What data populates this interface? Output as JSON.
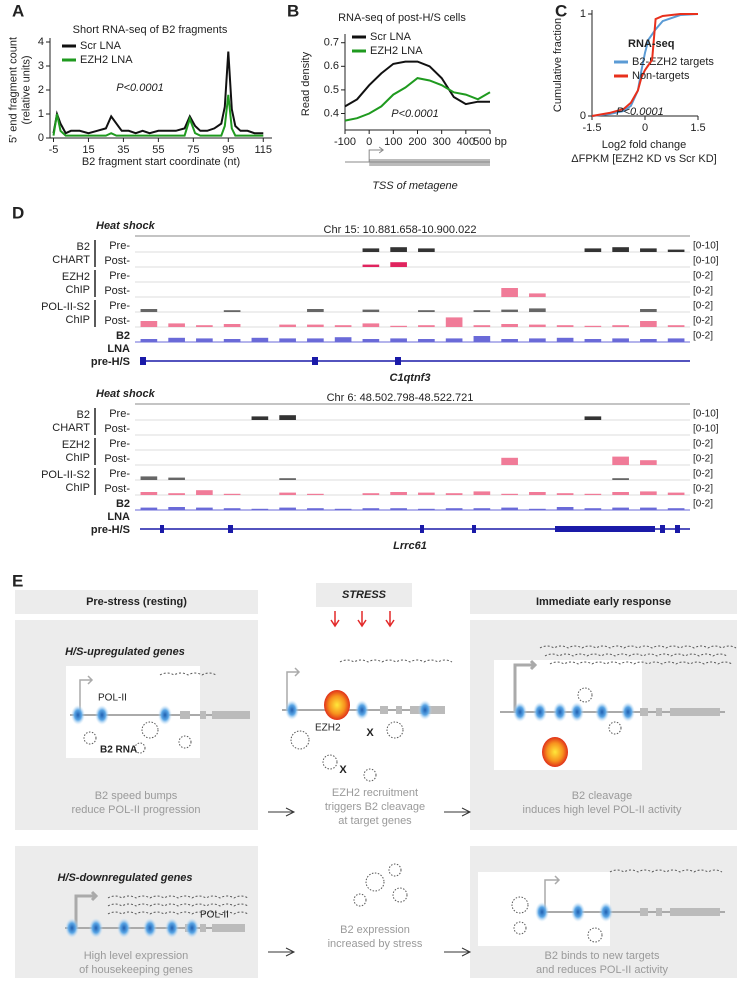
{
  "chart_data": [
    {
      "type": "line",
      "letter": "A",
      "title": "Short RNA-seq of B2 fragments",
      "xlabel": [
        "B2 fragment start coordinate (nt)"
      ],
      "ylabel": [
        "5' end fragment count",
        "(relative units)"
      ],
      "annotation": "P<0.0001",
      "x": [
        -5,
        -3,
        -1,
        2,
        5,
        10,
        15,
        20,
        25,
        28,
        31,
        34,
        38,
        42,
        46,
        50,
        55,
        60,
        65,
        70,
        73,
        76,
        79,
        83,
        87,
        91,
        93,
        95,
        97,
        99,
        102,
        106,
        110,
        115
      ],
      "series": [
        {
          "name": "Scr LNA",
          "color": "#111111",
          "values": [
            0.2,
            1.0,
            0.6,
            0.2,
            0.3,
            0.3,
            0.2,
            0.3,
            0.4,
            0.9,
            0.6,
            0.3,
            0.3,
            0.2,
            0.3,
            0.2,
            0.3,
            0.3,
            0.3,
            0.4,
            0.9,
            0.5,
            0.3,
            0.3,
            0.4,
            0.6,
            1.3,
            3.6,
            1.2,
            0.5,
            0.3,
            0.3,
            0.2,
            0.2
          ]
        },
        {
          "name": "EZH2 LNA",
          "color": "#1f9a1f",
          "values": [
            0.1,
            1.0,
            0.3,
            0.1,
            0.1,
            0.1,
            0.1,
            0.1,
            0.1,
            0.2,
            0.1,
            0.1,
            0.1,
            0.1,
            0.1,
            0.1,
            0.1,
            0.1,
            0.1,
            0.1,
            0.8,
            0.2,
            0.1,
            0.1,
            0.1,
            0.1,
            0.5,
            1.8,
            0.4,
            0.1,
            0.1,
            0.1,
            0.1,
            0.1
          ]
        }
      ],
      "xlim": [
        -7,
        120
      ],
      "xticks": [
        -5,
        15,
        35,
        55,
        75,
        95,
        115
      ],
      "ylim": [
        0,
        4
      ],
      "yticks": [
        0,
        1,
        2,
        3,
        4
      ]
    },
    {
      "type": "line",
      "letter": "B",
      "title": "RNA-seq of post-H/S cells",
      "xlabel": [
        "TSS of metagene"
      ],
      "ylabel": [
        "Read density"
      ],
      "annotation": "P<0.0001",
      "x": [
        -100,
        -50,
        0,
        50,
        100,
        150,
        200,
        250,
        300,
        350,
        400,
        450,
        500
      ],
      "series": [
        {
          "name": "Scr LNA",
          "color": "#111111",
          "values": [
            0.43,
            0.46,
            0.52,
            0.57,
            0.61,
            0.62,
            0.62,
            0.6,
            0.55,
            0.47,
            0.44,
            0.45,
            0.45
          ]
        },
        {
          "name": "EZH2 LNA",
          "color": "#1f9a1f",
          "values": [
            0.37,
            0.38,
            0.4,
            0.43,
            0.48,
            0.51,
            0.55,
            0.54,
            0.52,
            0.49,
            0.48,
            0.46,
            0.49
          ]
        }
      ],
      "xlim": [
        -100,
        500
      ],
      "xticks": [
        -100,
        0,
        100,
        200,
        300,
        400,
        {
          "value": 500,
          "label": "500 bp"
        }
      ],
      "ylim": [
        0.33,
        0.72
      ],
      "yticks": [
        0.4,
        0.5,
        0.6,
        0.7
      ]
    },
    {
      "type": "line",
      "letter": "C",
      "legend_title": "RNA-seq",
      "annotation": "P<0.0001",
      "xlabel": [
        "Log2 fold change",
        "ΔFPKM [EZH2 KD vs Scr KD]"
      ],
      "ylabel": [
        "Cumulative fraction"
      ],
      "x": [
        -1.5,
        -1,
        -0.6,
        -0.4,
        -0.2,
        -0.1,
        0,
        0.1,
        0.2,
        0.3,
        0.5,
        1,
        1.5
      ],
      "series": [
        {
          "name": "B2-EZH2 targets",
          "color": "#5b9bd5",
          "values": [
            0,
            0.02,
            0.05,
            0.1,
            0.25,
            0.45,
            0.62,
            0.75,
            0.8,
            0.85,
            0.93,
            0.99,
            1
          ]
        },
        {
          "name": "Non-targets",
          "color": "#e8301c",
          "values": [
            0,
            0.03,
            0.07,
            0.13,
            0.25,
            0.38,
            0.45,
            0.5,
            0.55,
            0.95,
            0.98,
            1,
            1
          ]
        }
      ],
      "xlim": [
        -1.5,
        1.5
      ],
      "xticks": [
        -1.5,
        0,
        1.5
      ],
      "ylim": [
        0,
        1
      ],
      "yticks": [
        0,
        1
      ]
    }
  ],
  "panel_d": {
    "letter": "D",
    "groups": [
      [
        "B2",
        "CHART"
      ],
      [
        "EZH2",
        "ChIP"
      ],
      [
        "POL-II-S2",
        "ChIP"
      ]
    ],
    "blue_label": [
      "B2",
      "LNA",
      "pre-H/S"
    ],
    "loci": [
      {
        "condition": "Heat shock",
        "coordinates": "Chr 15: 10.881.658-10.900.022",
        "gene": "C1qtnf3",
        "tracks": [
          {
            "label": "Pre-",
            "label_color": "#222222",
            "color": "#333333",
            "ylim": [
              0,
              10
            ],
            "range_label": "[0-10]",
            "values": [
              0,
              0,
              0,
              0,
              0,
              0,
              0,
              0,
              3,
              4,
              3,
              0,
              0,
              0,
              0,
              0,
              3,
              4,
              3,
              2
            ]
          },
          {
            "label": "Post-",
            "label_color": "#e0245e",
            "color": "#e0245e",
            "ylim": [
              0,
              10
            ],
            "range_label": "[0-10]",
            "values": [
              0,
              0,
              0,
              0,
              0,
              0,
              0,
              0,
              2,
              4,
              0,
              0,
              0,
              0,
              0,
              0,
              0,
              0,
              0,
              0
            ]
          },
          {
            "label": "Pre-",
            "label_color": "#222222",
            "color": "#555555",
            "ylim": [
              0,
              2
            ],
            "range_label": "[0-2]",
            "values": [
              0,
              0,
              0,
              0,
              0,
              0,
              0,
              0,
              0,
              0,
              0,
              0,
              0,
              0,
              0,
              0,
              0,
              0,
              0,
              0
            ]
          },
          {
            "label": "Post-",
            "label_color": "#e0245e",
            "color": "#f07b98",
            "ylim": [
              0,
              2
            ],
            "range_label": "[0-2]",
            "values": [
              0,
              0,
              0,
              0,
              0,
              0,
              0,
              0,
              0,
              0,
              0,
              0,
              0,
              1.5,
              0.6,
              0,
              0,
              0,
              0,
              0
            ]
          },
          {
            "label": "Pre-",
            "label_color": "#222222",
            "color": "#666666",
            "ylim": [
              0,
              2
            ],
            "range_label": "[0-2]",
            "values": [
              0.5,
              0,
              0,
              0.3,
              0,
              0,
              0.5,
              0,
              0.4,
              0,
              0.3,
              0,
              0.3,
              0.4,
              0.6,
              0,
              0,
              0,
              0.5,
              0
            ]
          },
          {
            "label": "Post-",
            "label_color": "#e0245e",
            "color": "#f07b98",
            "ylim": [
              0,
              2
            ],
            "range_label": "[0-2]",
            "values": [
              1,
              0.6,
              0.3,
              0.5,
              0,
              0.4,
              0.4,
              0.3,
              0.6,
              0.2,
              0.3,
              1.6,
              0.3,
              0.5,
              0.4,
              0.3,
              0.2,
              0.3,
              1,
              0.3
            ]
          },
          {
            "color": "#6a6ad8",
            "ylim": [
              0,
              2
            ],
            "range_label": "[0-2]",
            "values": [
              0.5,
              0.7,
              0.6,
              0.5,
              0.7,
              0.6,
              0.6,
              0.8,
              0.5,
              0.6,
              0.5,
              0.6,
              1,
              0.5,
              0.6,
              0.7,
              0.5,
              0.6,
              0.5,
              0.6
            ]
          }
        ]
      },
      {
        "condition": "Heat shock",
        "coordinates": "Chr 6: 48.502.798-48.522.721",
        "gene": "Lrrc61",
        "tracks": [
          {
            "label": "Pre-",
            "label_color": "#222222",
            "color": "#333333",
            "ylim": [
              0,
              10
            ],
            "range_label": "[0-10]",
            "values": [
              0,
              0,
              0,
              0,
              3,
              4,
              0,
              0,
              0,
              0,
              0,
              0,
              0,
              0,
              0,
              0,
              3,
              0,
              0,
              0
            ]
          },
          {
            "label": "Post-",
            "label_color": "#e0245e",
            "color": "#e0245e",
            "ylim": [
              0,
              10
            ],
            "range_label": "[0-10]",
            "values": [
              0,
              0,
              0,
              0,
              0,
              0,
              0,
              0,
              0,
              0,
              0,
              0,
              0,
              0,
              0,
              0,
              0,
              0,
              0,
              0
            ]
          },
          {
            "label": "Pre-",
            "label_color": "#222222",
            "color": "#555555",
            "ylim": [
              0,
              2
            ],
            "range_label": "[0-2]",
            "values": [
              0,
              0,
              0,
              0,
              0,
              0,
              0,
              0,
              0,
              0,
              0,
              0,
              0,
              0,
              0,
              0,
              0,
              0,
              0,
              0
            ]
          },
          {
            "label": "Post-",
            "label_color": "#e0245e",
            "color": "#f07b98",
            "ylim": [
              0,
              2
            ],
            "range_label": "[0-2]",
            "values": [
              0,
              0,
              0,
              0,
              0,
              0,
              0,
              0,
              0,
              0,
              0,
              0,
              0,
              1.2,
              0,
              0,
              0,
              1.4,
              0.8,
              0
            ]
          },
          {
            "label": "Pre-",
            "label_color": "#222222",
            "color": "#666666",
            "ylim": [
              0,
              2
            ],
            "range_label": "[0-2]",
            "values": [
              0.6,
              0.4,
              0,
              0,
              0,
              0.3,
              0,
              0,
              0,
              0,
              0,
              0,
              0,
              0,
              0,
              0,
              0,
              0.3,
              0,
              0
            ]
          },
          {
            "label": "Post-",
            "label_color": "#e0245e",
            "color": "#f07b98",
            "ylim": [
              0,
              2
            ],
            "range_label": "[0-2]",
            "values": [
              0.5,
              0.3,
              0.8,
              0.2,
              0,
              0.4,
              0.2,
              0,
              0.3,
              0.5,
              0.4,
              0.3,
              0.6,
              0.2,
              0.5,
              0.3,
              0.2,
              0.5,
              0.6,
              0.4
            ]
          },
          {
            "color": "#6a6ad8",
            "ylim": [
              0,
              2
            ],
            "range_label": "[0-2]",
            "values": [
              0.4,
              0.5,
              0.4,
              0.3,
              0.2,
              0.4,
              0.3,
              0.2,
              0.3,
              0.3,
              0.2,
              0.3,
              0.3,
              0.4,
              0.2,
              0.5,
              0.3,
              0.4,
              0.4,
              0.3
            ]
          }
        ]
      }
    ]
  },
  "panel_e": {
    "letter": "E",
    "columns": [
      "Pre-stress (resting)",
      "STRESS",
      "Immediate early response"
    ],
    "rows": [
      {
        "gene_set": "H/S-upregulated genes",
        "panels": [
          {
            "labels": [
              "POL-II",
              "B2 RNA"
            ],
            "caption": [
              "B2 speed bumps",
              "reduce POL-II progression"
            ]
          },
          {
            "labels": [
              "EZH2",
              "X",
              "X"
            ],
            "caption": [
              "EZH2 recruitment",
              "triggers B2 cleavage",
              "at target genes"
            ]
          },
          {
            "caption": [
              "B2 cleavage",
              "induces high level POL-II activity"
            ]
          }
        ]
      },
      {
        "gene_set": "H/S-downregulated genes",
        "panels": [
          {
            "labels": [
              "POL-II"
            ],
            "caption": [
              "High level expression",
              "of housekeeping genes"
            ]
          },
          {
            "caption": [
              "B2 expression",
              "increased by stress"
            ]
          },
          {
            "caption": [
              "B2 binds to new targets",
              "and reduces POL-II activity"
            ]
          }
        ]
      }
    ]
  }
}
